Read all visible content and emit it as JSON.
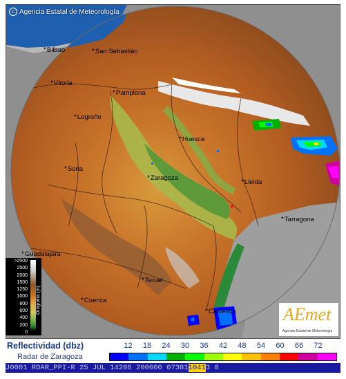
{
  "agency": "Agencia Estatal de Meteorología",
  "copyright_symbol": "c",
  "cities": [
    {
      "name": "Bilbao",
      "id": "bilbao"
    },
    {
      "name": "San Sebastián",
      "id": "san-sebastian"
    },
    {
      "name": "Vitoria",
      "id": "vitoria"
    },
    {
      "name": "Pamplona",
      "id": "pamplona"
    },
    {
      "name": "Logroño",
      "id": "logrono"
    },
    {
      "name": "Huesca",
      "id": "huesca"
    },
    {
      "name": "Soria",
      "id": "soria"
    },
    {
      "name": "Zaragoza",
      "id": "zaragoza"
    },
    {
      "name": "Lleida",
      "id": "lleida"
    },
    {
      "name": "Tarragona",
      "id": "tarragona"
    },
    {
      "name": "Guadalajara",
      "id": "guadalajara"
    },
    {
      "name": "Teruel",
      "id": "teruel"
    },
    {
      "name": "Cuenca",
      "id": "cuenca"
    },
    {
      "name": "Castellón",
      "id": "castellon"
    }
  ],
  "topo_legend": {
    "axis_label": "Orografía (m)",
    "scale": [
      ">2500",
      "2500",
      "2000",
      "1500",
      "1250",
      "1000",
      "800",
      "600",
      "400",
      "200",
      "0"
    ]
  },
  "logo": {
    "main": "AEmet",
    "sub": "Agencia Estatal de Meteorología"
  },
  "reflectivity": {
    "title": "Reflectividad (dbz)",
    "subtitle": "Radar de Zaragoza",
    "ticks": [
      "12",
      "18",
      "24",
      "30",
      "36",
      "42",
      "48",
      "54",
      "60",
      "66",
      "72"
    ],
    "colors": [
      "#0000ff",
      "#0070ff",
      "#00d8ff",
      "#00b000",
      "#00ff00",
      "#a0ff00",
      "#ffff00",
      "#ffc000",
      "#ff8000",
      "#ff0000",
      "#d000a0",
      "#ff00ff"
    ]
  },
  "status": {
    "text": "J0001 RDAR_PPI-R  25 JUL 14206 200000 07381",
    "highlight": "1041",
    "tail": "3 0"
  }
}
